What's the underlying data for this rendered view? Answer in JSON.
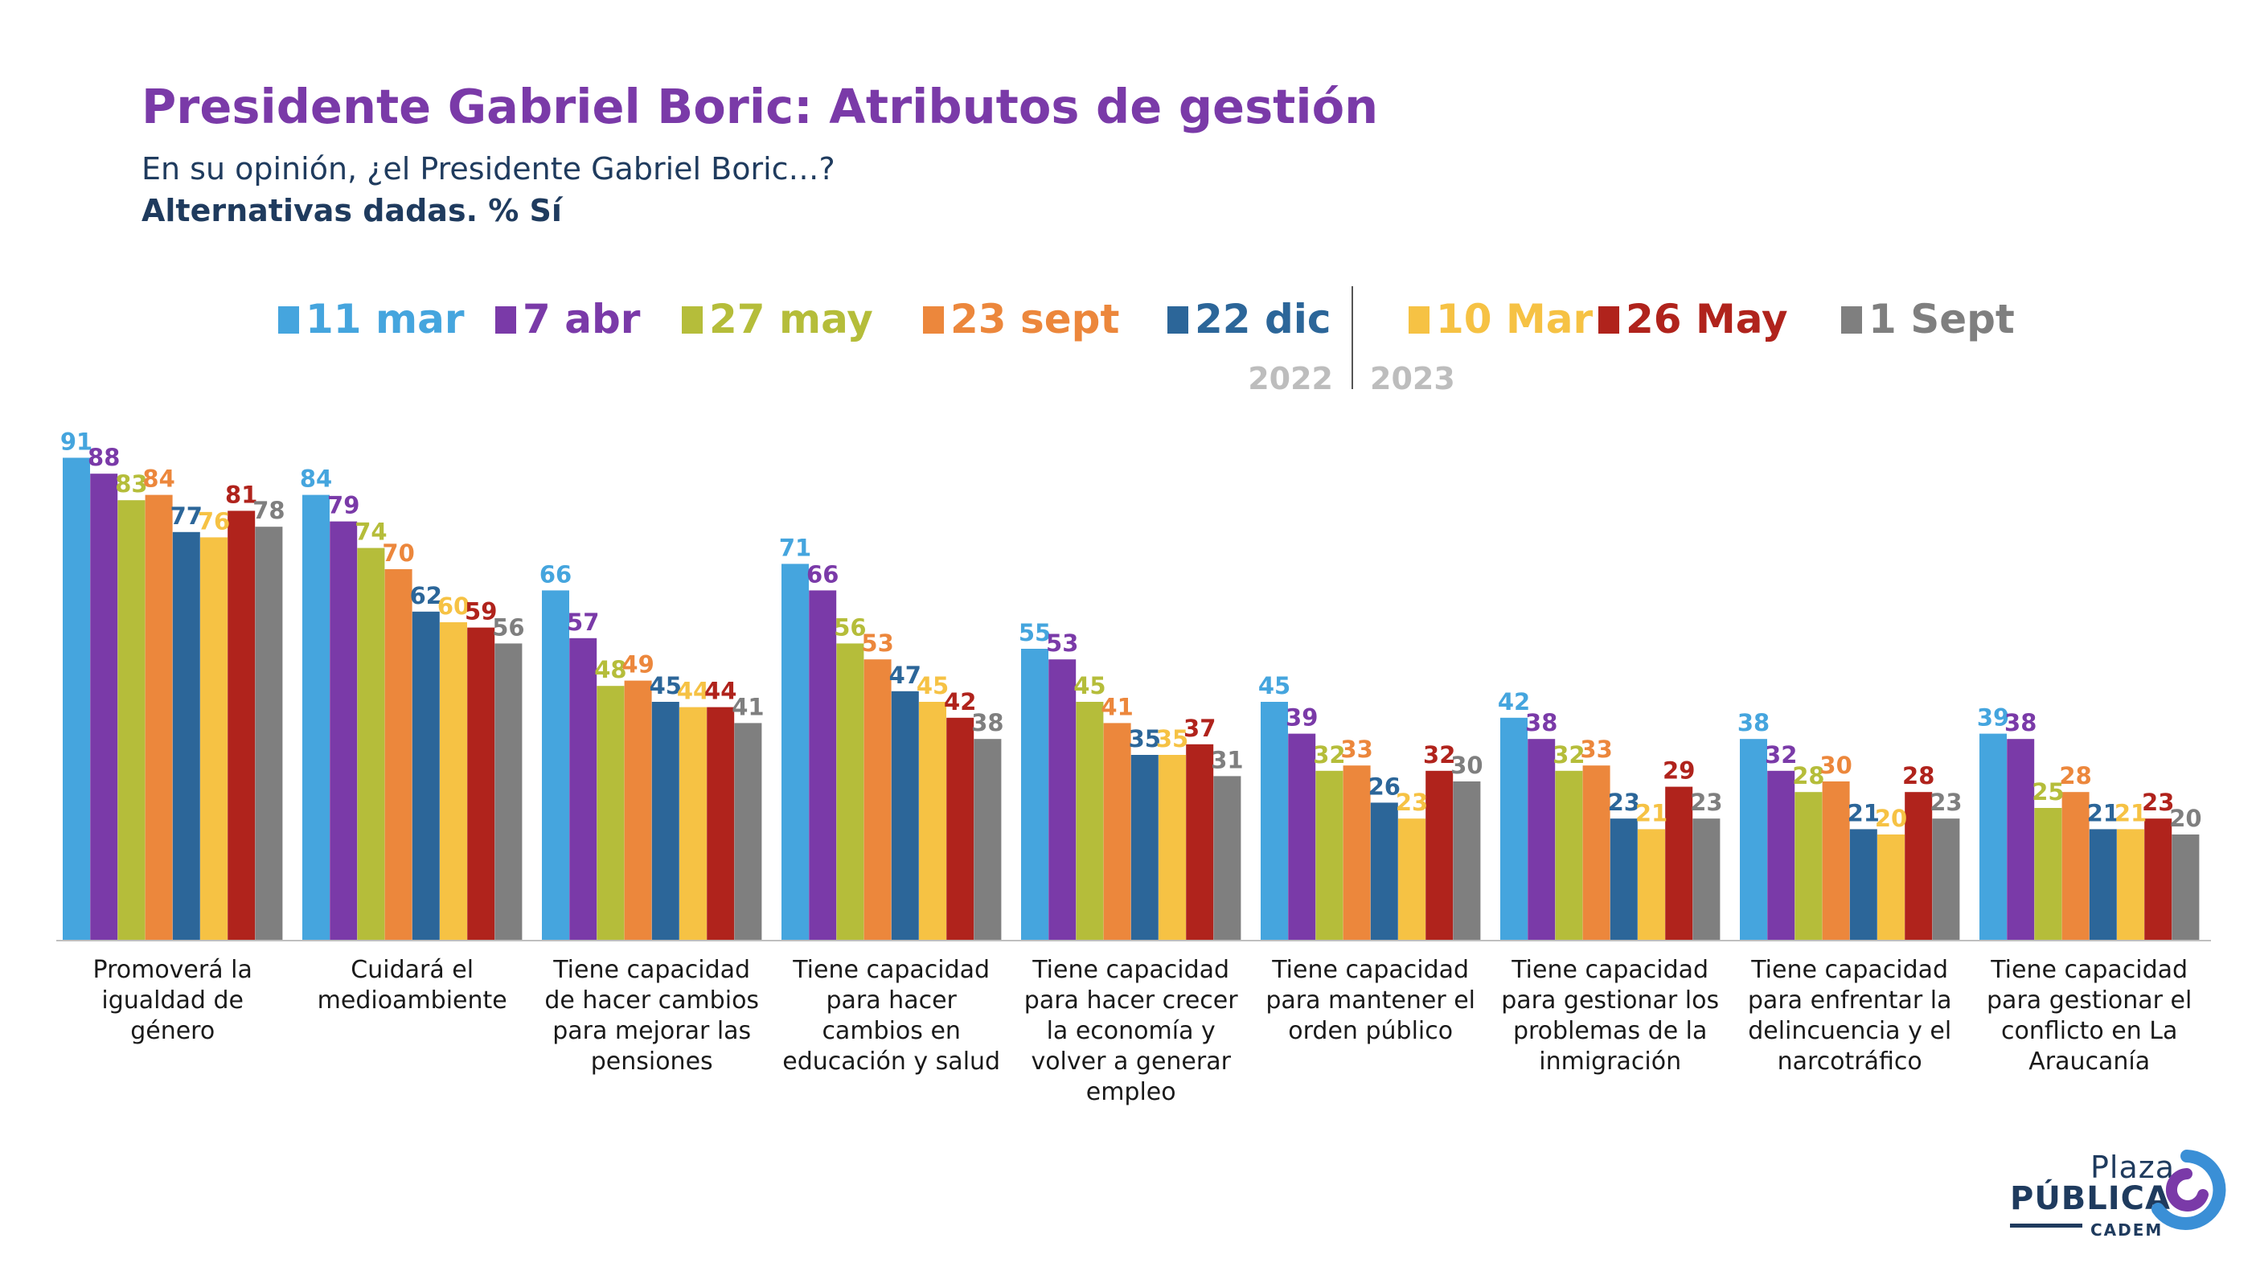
{
  "header": {
    "title": "Presidente Gabriel Boric: Atributos de gestión",
    "subtitle": "En su opinión, ¿el Presidente Gabriel Boric…?",
    "note": "Alternativas dadas. % Sí"
  },
  "legend": {
    "year_left": "2022",
    "year_right": "2023"
  },
  "logo": {
    "line1": "Plaza",
    "line2": "PÚBLICA",
    "line3": "CADEM"
  },
  "chart_data": {
    "type": "bar",
    "title": "Presidente Gabriel Boric: Atributos de gestión",
    "ylim": [
      0,
      100
    ],
    "legend_position": "top",
    "grid": false,
    "categories": [
      "Promoverá la igualdad de género",
      "Cuidará el medioambiente",
      "Tiene capacidad de hacer cambios para mejorar las pensiones",
      "Tiene capacidad para hacer cambios en educación y salud",
      "Tiene capacidad para hacer crecer la economía y volver a generar empleo",
      "Tiene capacidad para mantener el orden público",
      "Tiene capacidad para gestionar los problemas de la inmigración",
      "Tiene capacidad para enfrentar la delincuencia y el narcotráfico",
      "Tiene capacidad para gestionar el conflicto en La Araucanía"
    ],
    "series": [
      {
        "name": "11 mar",
        "color": "#45a5de",
        "values": [
          91,
          84,
          66,
          71,
          55,
          45,
          42,
          38,
          39
        ]
      },
      {
        "name": "7 abr",
        "color": "#7a3aa8",
        "values": [
          88,
          79,
          57,
          66,
          53,
          39,
          38,
          32,
          38
        ]
      },
      {
        "name": "27 may",
        "color": "#b5bd3a",
        "values": [
          83,
          74,
          48,
          56,
          45,
          32,
          32,
          28,
          25
        ]
      },
      {
        "name": "23 sept",
        "color": "#ec873c",
        "values": [
          84,
          70,
          49,
          53,
          41,
          33,
          33,
          30,
          28
        ]
      },
      {
        "name": "22 dic",
        "color": "#2c6699",
        "values": [
          77,
          62,
          45,
          47,
          35,
          26,
          23,
          21,
          21
        ]
      },
      {
        "name": "10 Mar",
        "color": "#f6c244",
        "values": [
          76,
          60,
          44,
          45,
          35,
          23,
          21,
          20,
          21
        ]
      },
      {
        "name": "26 May",
        "color": "#b0231c",
        "values": [
          81,
          59,
          44,
          42,
          37,
          32,
          29,
          28,
          23
        ]
      },
      {
        "name": "1 Sept",
        "color": "#7f7f7f",
        "values": [
          78,
          56,
          41,
          38,
          31,
          30,
          23,
          23,
          20
        ]
      }
    ]
  }
}
